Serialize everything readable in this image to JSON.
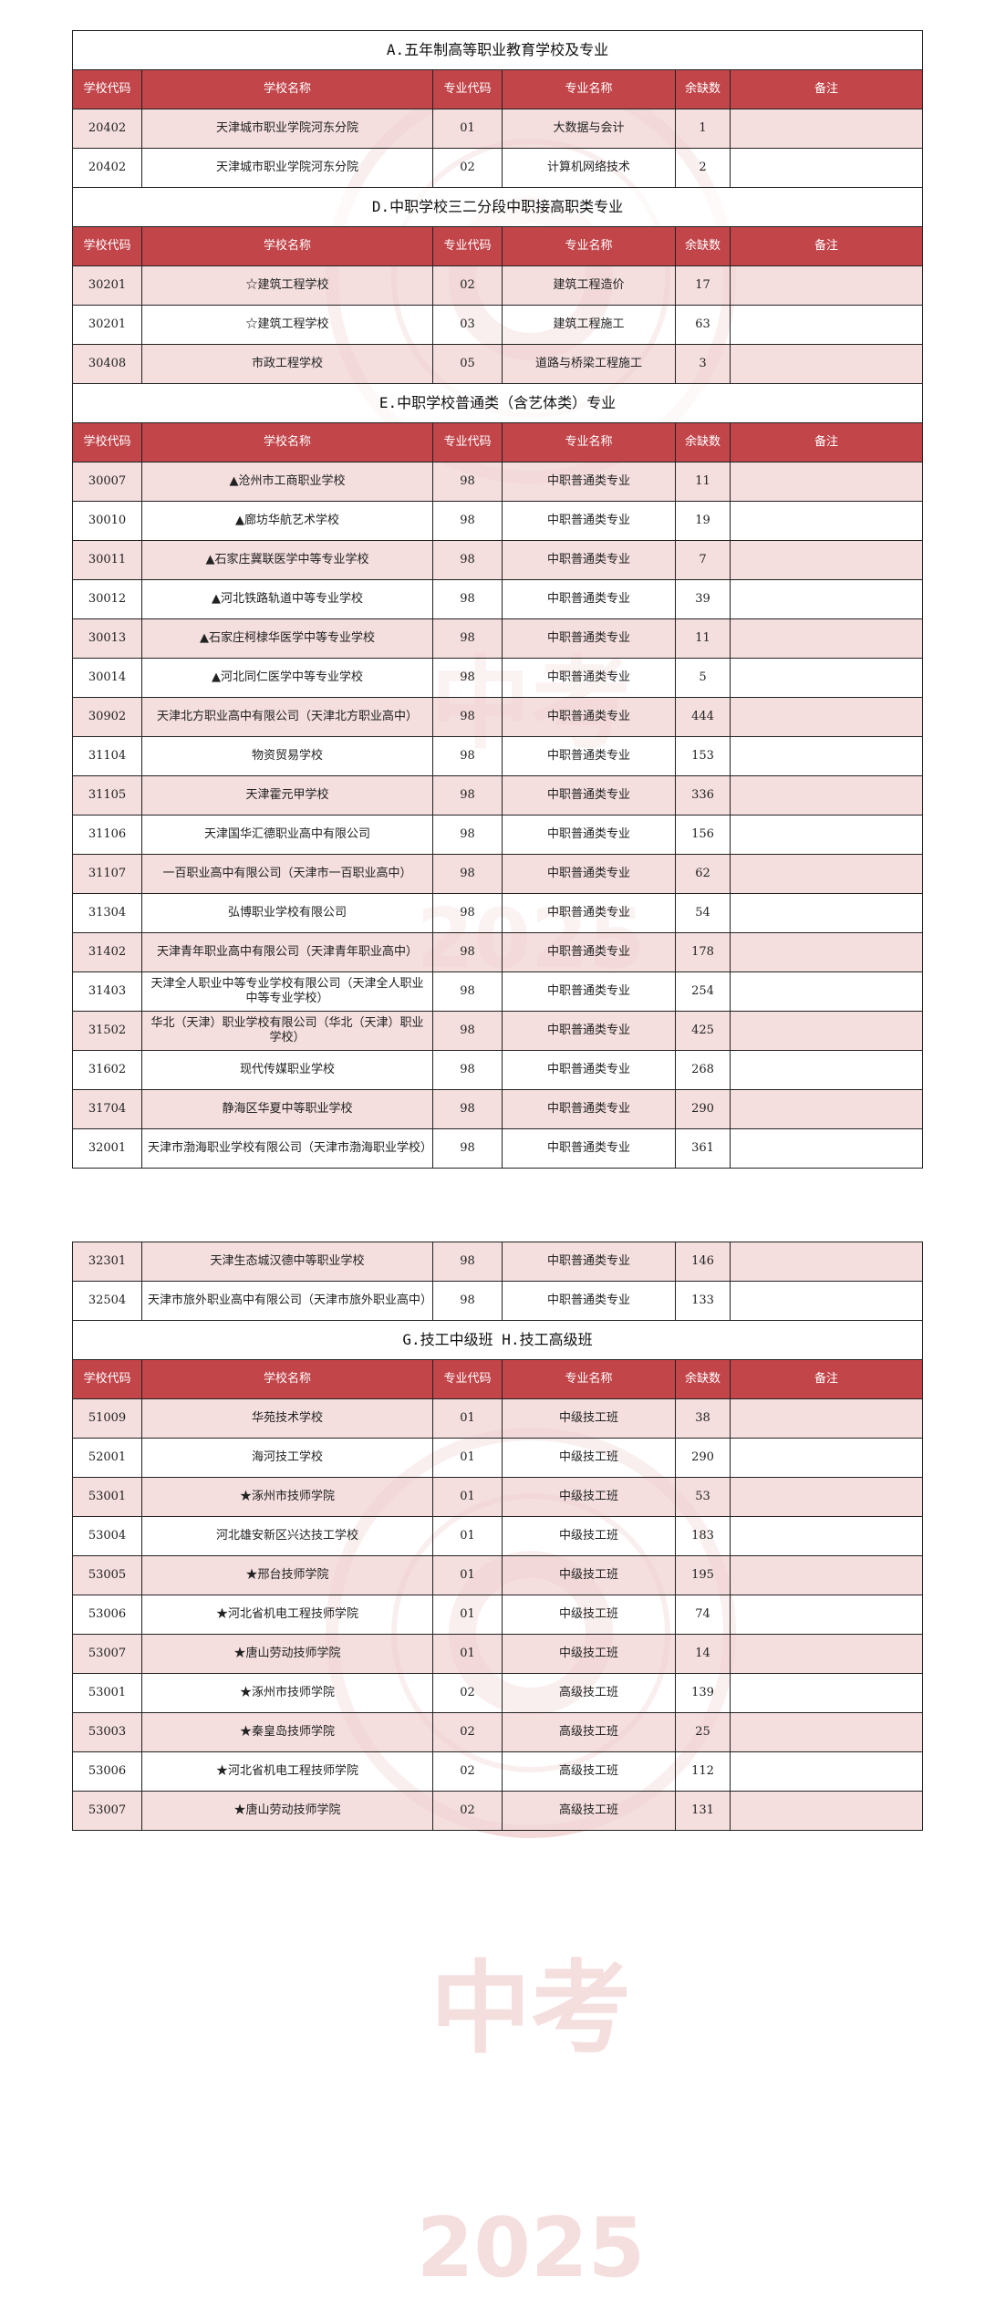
{
  "columns": [
    "学校代码",
    "学校名称",
    "专业代码",
    "专业名称",
    "余缺数",
    "备注"
  ],
  "watermark": {
    "exam": "中考",
    "year": "2025"
  },
  "pages": [
    {
      "sections": [
        {
          "title": "A.五年制高等职业教育学校及专业",
          "rows": [
            [
              "20402",
              "天津城市职业学院河东分院",
              "01",
              "大数据与会计",
              1
            ],
            [
              "20402",
              "天津城市职业学院河东分院",
              "02",
              "计算机网络技术",
              2
            ]
          ]
        },
        {
          "title": "D.中职学校三二分段中职接高职类专业",
          "rows": [
            [
              "30201",
              "☆建筑工程学校",
              "02",
              "建筑工程造价",
              17
            ],
            [
              "30201",
              "☆建筑工程学校",
              "03",
              "建筑工程施工",
              63
            ],
            [
              "30408",
              "市政工程学校",
              "05",
              "道路与桥梁工程施工",
              3
            ]
          ]
        },
        {
          "title": "E.中职学校普通类（含艺体类）专业",
          "rows": [
            [
              "30007",
              "▲沧州市工商职业学校",
              "98",
              "中职普通类专业",
              11
            ],
            [
              "30010",
              "▲廊坊华航艺术学校",
              "98",
              "中职普通类专业",
              19
            ],
            [
              "30011",
              "▲石家庄冀联医学中等专业学校",
              "98",
              "中职普通类专业",
              7
            ],
            [
              "30012",
              "▲河北铁路轨道中等专业学校",
              "98",
              "中职普通类专业",
              39
            ],
            [
              "30013",
              "▲石家庄柯棣华医学中等专业学校",
              "98",
              "中职普通类专业",
              11
            ],
            [
              "30014",
              "▲河北同仁医学中等专业学校",
              "98",
              "中职普通类专业",
              5
            ],
            [
              "30902",
              "天津北方职业高中有限公司（天津北方职业高中）",
              "98",
              "中职普通类专业",
              444
            ],
            [
              "31104",
              "物资贸易学校",
              "98",
              "中职普通类专业",
              153
            ],
            [
              "31105",
              "天津霍元甲学校",
              "98",
              "中职普通类专业",
              336
            ],
            [
              "31106",
              "天津国华汇德职业高中有限公司",
              "98",
              "中职普通类专业",
              156
            ],
            [
              "31107",
              "一百职业高中有限公司（天津市一百职业高中）",
              "98",
              "中职普通类专业",
              62
            ],
            [
              "31304",
              "弘博职业学校有限公司",
              "98",
              "中职普通类专业",
              54
            ],
            [
              "31402",
              "天津青年职业高中有限公司（天津青年职业高中）",
              "98",
              "中职普通类专业",
              178
            ],
            [
              "31403",
              "天津全人职业中等专业学校有限公司（天津全人职业中等专业学校）",
              "98",
              "中职普通类专业",
              254
            ],
            [
              "31502",
              "华北（天津）职业学校有限公司（华北（天津）职业学校）",
              "98",
              "中职普通类专业",
              425
            ],
            [
              "31602",
              "现代传媒职业学校",
              "98",
              "中职普通类专业",
              268
            ],
            [
              "31704",
              "静海区华夏中等职业学校",
              "98",
              "中职普通类专业",
              290
            ],
            [
              "32001",
              "天津市渤海职业学校有限公司（天津市渤海职业学校）",
              "98",
              "中职普通类专业",
              361
            ]
          ]
        }
      ]
    },
    {
      "sections": [
        {
          "rows": [
            [
              "32301",
              "天津生态城汉德中等职业学校",
              "98",
              "中职普通类专业",
              146
            ],
            [
              "32504",
              "天津市旅外职业高中有限公司（天津市旅外职业高中）",
              "98",
              "中职普通类专业",
              133
            ]
          ]
        },
        {
          "title": "G.技工中级班  H.技工高级班",
          "rows": [
            [
              "51009",
              "华苑技术学校",
              "01",
              "中级技工班",
              38
            ],
            [
              "52001",
              "海河技工学校",
              "01",
              "中级技工班",
              290
            ],
            [
              "53001",
              "★涿州市技师学院",
              "01",
              "中级技工班",
              53
            ],
            [
              "53004",
              "河北雄安新区兴达技工学校",
              "01",
              "中级技工班",
              183
            ],
            [
              "53005",
              "★邢台技师学院",
              "01",
              "中级技工班",
              195
            ],
            [
              "53006",
              "★河北省机电工程技师学院",
              "01",
              "中级技工班",
              74
            ],
            [
              "53007",
              "★唐山劳动技师学院",
              "01",
              "中级技工班",
              14
            ],
            [
              "53001",
              "★涿州市技师学院",
              "02",
              "高级技工班",
              139
            ],
            [
              "53003",
              "★秦皇岛技师学院",
              "02",
              "高级技工班",
              25
            ],
            [
              "53006",
              "★河北省机电工程技师学院",
              "02",
              "高级技工班",
              112
            ],
            [
              "53007",
              "★唐山劳动技师学院",
              "02",
              "高级技工班",
              131
            ]
          ]
        }
      ]
    }
  ]
}
